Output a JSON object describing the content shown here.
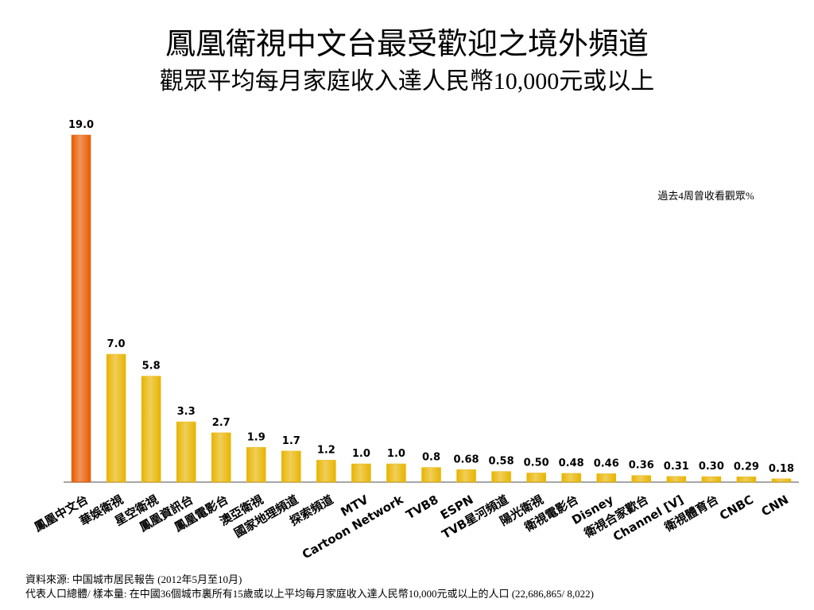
{
  "chart_data": {
    "type": "bar",
    "title": "鳳凰衛視中文台最受歡迎之境外頻道",
    "subtitle": "觀眾平均每月家庭收入達人民幣10,000元或以上",
    "annotation": "過去4周曾收看觀眾%",
    "footnotes": [
      "資料來源: 中国城市居民報告 (2012年5月至10月)",
      "代表人口總體/ 樣本量: 在中國36個城市裏所有15歲或以上平均每月家庭收入達人民幣10,000元或以上的人口 (22,686,865/ 8,022)"
    ],
    "categories": [
      "鳳凰中文台",
      "華娛衛視",
      "星空衛視",
      "鳳凰資訊台",
      "鳳凰電影台",
      "澳亞衛視",
      "國家地理頻道",
      "探索頻道",
      "MTV",
      "Cartoon Network",
      "TVB8",
      "ESPN",
      "TVB星河頻道",
      "陽光衛視",
      "衛視電影台",
      "Disney",
      "衛視合家歡台",
      "Channel [V]",
      "衛視體育台",
      "CNBC",
      "CNN"
    ],
    "values": [
      19.0,
      7.0,
      5.8,
      3.3,
      2.7,
      1.9,
      1.7,
      1.2,
      1.0,
      1.0,
      0.8,
      0.68,
      0.58,
      0.5,
      0.48,
      0.46,
      0.36,
      0.31,
      0.3,
      0.29,
      0.18
    ],
    "value_labels": [
      "19.0",
      "7.0",
      "5.8",
      "3.3",
      "2.7",
      "1.9",
      "1.7",
      "1.2",
      "1.0",
      "1.0",
      "0.8",
      "0.68",
      "0.58",
      "0.50",
      "0.48",
      "0.46",
      "0.36",
      "0.31",
      "0.30",
      "0.29",
      "0.18"
    ],
    "colors": [
      "#e85a00",
      "#e8b400",
      "#e8b400",
      "#e8b400",
      "#e8b400",
      "#e8b400",
      "#e8b400",
      "#e8b400",
      "#e8b400",
      "#e8b400",
      "#e8b400",
      "#e8b400",
      "#e8b400",
      "#e8b400",
      "#e8b400",
      "#e8b400",
      "#e8b400",
      "#e8b400",
      "#e8b400",
      "#e8b400",
      "#e8b400"
    ],
    "ylim": [
      0,
      19
    ]
  }
}
